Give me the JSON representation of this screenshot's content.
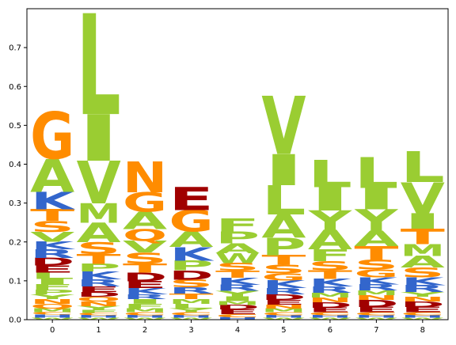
{
  "chart_data": {
    "type": "sequence-logo",
    "title": "",
    "xlabel": "",
    "ylabel": "",
    "ylim": [
      0,
      0.8
    ],
    "yticks": [
      0.0,
      0.1,
      0.2,
      0.3,
      0.4,
      0.5,
      0.6,
      0.7
    ],
    "ytick_labels": [
      "0.0",
      "0.1",
      "0.2",
      "0.3",
      "0.4",
      "0.5",
      "0.6",
      "0.7"
    ],
    "positions": [
      0,
      1,
      2,
      3,
      4,
      5,
      6,
      7,
      8
    ],
    "xtick_labels": [
      "0",
      "1",
      "2",
      "3",
      "4",
      "5",
      "6",
      "7",
      "8"
    ],
    "grid": false,
    "colors": {
      "hydrophobic": "#9acd32",
      "polar": "#ff8c00",
      "acidic": "#a00000",
      "basic": "#3366cc"
    },
    "letter_colors": {
      "A": "#9acd32",
      "V": "#9acd32",
      "L": "#9acd32",
      "I": "#9acd32",
      "M": "#9acd32",
      "F": "#9acd32",
      "W": "#9acd32",
      "P": "#9acd32",
      "Y": "#9acd32",
      "G": "#ff8c00",
      "S": "#ff8c00",
      "T": "#ff8c00",
      "N": "#ff8c00",
      "Q": "#ff8c00",
      "C": "#ff8c00",
      "D": "#a00000",
      "E": "#a00000",
      "K": "#3366cc",
      "R": "#3366cc",
      "H": "#3366cc"
    },
    "stacks": [
      [
        [
          "W",
          0.005
        ],
        [
          "H",
          0.008
        ],
        [
          "C",
          0.006
        ],
        [
          "M",
          0.01
        ],
        [
          "Q",
          0.012
        ],
        [
          "N",
          0.012
        ],
        [
          "Y",
          0.012
        ],
        [
          "P",
          0.012
        ],
        [
          "F",
          0.014
        ],
        [
          "I",
          0.014
        ],
        [
          "L",
          0.016
        ],
        [
          "E",
          0.018
        ],
        [
          "D",
          0.02
        ],
        [
          "R",
          0.022
        ],
        [
          "K",
          0.02
        ],
        [
          "V",
          0.025
        ],
        [
          "S",
          0.028
        ],
        [
          "T",
          0.03
        ],
        [
          "K",
          0.045
        ],
        [
          "A",
          0.085
        ],
        [
          "G",
          0.12
        ]
      ],
      [
        [
          "W",
          0.005
        ],
        [
          "H",
          0.006
        ],
        [
          "C",
          0.006
        ],
        [
          "F",
          0.008
        ],
        [
          "Y",
          0.01
        ],
        [
          "N",
          0.012
        ],
        [
          "Q",
          0.012
        ],
        [
          "D",
          0.012
        ],
        [
          "E",
          0.015
        ],
        [
          "R",
          0.018
        ],
        [
          "K",
          0.02
        ],
        [
          "P",
          0.02
        ],
        [
          "T",
          0.025
        ],
        [
          "S",
          0.03
        ],
        [
          "A",
          0.05
        ],
        [
          "M",
          0.05
        ],
        [
          "V",
          0.11
        ],
        [
          "I",
          0.12
        ],
        [
          "L",
          0.26
        ]
      ],
      [
        [
          "W",
          0.005
        ],
        [
          "H",
          0.006
        ],
        [
          "C",
          0.008
        ],
        [
          "M",
          0.01
        ],
        [
          "F",
          0.012
        ],
        [
          "I",
          0.012
        ],
        [
          "R",
          0.012
        ],
        [
          "K",
          0.016
        ],
        [
          "E",
          0.018
        ],
        [
          "D",
          0.022
        ],
        [
          "T",
          0.024
        ],
        [
          "S",
          0.028
        ],
        [
          "V",
          0.03
        ],
        [
          "Q",
          0.03
        ],
        [
          "A",
          0.045
        ],
        [
          "G",
          0.05
        ],
        [
          "N",
          0.08
        ]
      ],
      [
        [
          "W",
          0.005
        ],
        [
          "H",
          0.006
        ],
        [
          "C",
          0.008
        ],
        [
          "Y",
          0.01
        ],
        [
          "L",
          0.012
        ],
        [
          "M",
          0.012
        ],
        [
          "T",
          0.014
        ],
        [
          "R",
          0.016
        ],
        [
          "S",
          0.02
        ],
        [
          "D",
          0.024
        ],
        [
          "P",
          0.025
        ],
        [
          "K",
          0.035
        ],
        [
          "A",
          0.04
        ],
        [
          "G",
          0.055
        ],
        [
          "E",
          0.06
        ]
      ],
      [
        [
          "H",
          0.006
        ],
        [
          "C",
          0.008
        ],
        [
          "E",
          0.012
        ],
        [
          "D",
          0.012
        ],
        [
          "M",
          0.01
        ],
        [
          "I",
          0.012
        ],
        [
          "Y",
          0.014
        ],
        [
          "R",
          0.016
        ],
        [
          "K",
          0.018
        ],
        [
          "T",
          0.018
        ],
        [
          "S",
          0.02
        ],
        [
          "W",
          0.025
        ],
        [
          "A",
          0.025
        ],
        [
          "P",
          0.03
        ],
        [
          "F",
          0.035
        ]
      ],
      [
        [
          "W",
          0.005
        ],
        [
          "H",
          0.006
        ],
        [
          "C",
          0.008
        ],
        [
          "M",
          0.01
        ],
        [
          "N",
          0.01
        ],
        [
          "E",
          0.012
        ],
        [
          "D",
          0.014
        ],
        [
          "R",
          0.016
        ],
        [
          "K",
          0.02
        ],
        [
          "G",
          0.018
        ],
        [
          "S",
          0.022
        ],
        [
          "T",
          0.025
        ],
        [
          "P",
          0.045
        ],
        [
          "A",
          0.06
        ],
        [
          "L",
          0.075
        ],
        [
          "I",
          0.08
        ],
        [
          "V",
          0.15
        ]
      ],
      [
        [
          "W",
          0.005
        ],
        [
          "H",
          0.006
        ],
        [
          "C",
          0.008
        ],
        [
          "E",
          0.012
        ],
        [
          "D",
          0.014
        ],
        [
          "N",
          0.012
        ],
        [
          "M",
          0.012
        ],
        [
          "R",
          0.016
        ],
        [
          "K",
          0.02
        ],
        [
          "T",
          0.022
        ],
        [
          "S",
          0.024
        ],
        [
          "F",
          0.03
        ],
        [
          "A",
          0.05
        ],
        [
          "Y",
          0.05
        ],
        [
          "I",
          0.06
        ],
        [
          "L",
          0.07
        ]
      ],
      [
        [
          "W",
          0.005
        ],
        [
          "H",
          0.006
        ],
        [
          "C",
          0.008
        ],
        [
          "E",
          0.014
        ],
        [
          "D",
          0.018
        ],
        [
          "N",
          0.012
        ],
        [
          "M",
          0.012
        ],
        [
          "R",
          0.016
        ],
        [
          "K",
          0.018
        ],
        [
          "G",
          0.02
        ],
        [
          "S",
          0.025
        ],
        [
          "T",
          0.035
        ],
        [
          "A",
          0.04
        ],
        [
          "Y",
          0.055
        ],
        [
          "I",
          0.055
        ],
        [
          "L",
          0.08
        ]
      ],
      [
        [
          "W",
          0.005
        ],
        [
          "H",
          0.006
        ],
        [
          "C",
          0.008
        ],
        [
          "E",
          0.014
        ],
        [
          "D",
          0.014
        ],
        [
          "N",
          0.012
        ],
        [
          "Y",
          0.012
        ],
        [
          "R",
          0.018
        ],
        [
          "K",
          0.02
        ],
        [
          "S",
          0.025
        ],
        [
          "A",
          0.03
        ],
        [
          "M",
          0.03
        ],
        [
          "T",
          0.04
        ],
        [
          "I",
          0.04
        ],
        [
          "V",
          0.08
        ],
        [
          "L",
          0.08
        ]
      ]
    ]
  }
}
